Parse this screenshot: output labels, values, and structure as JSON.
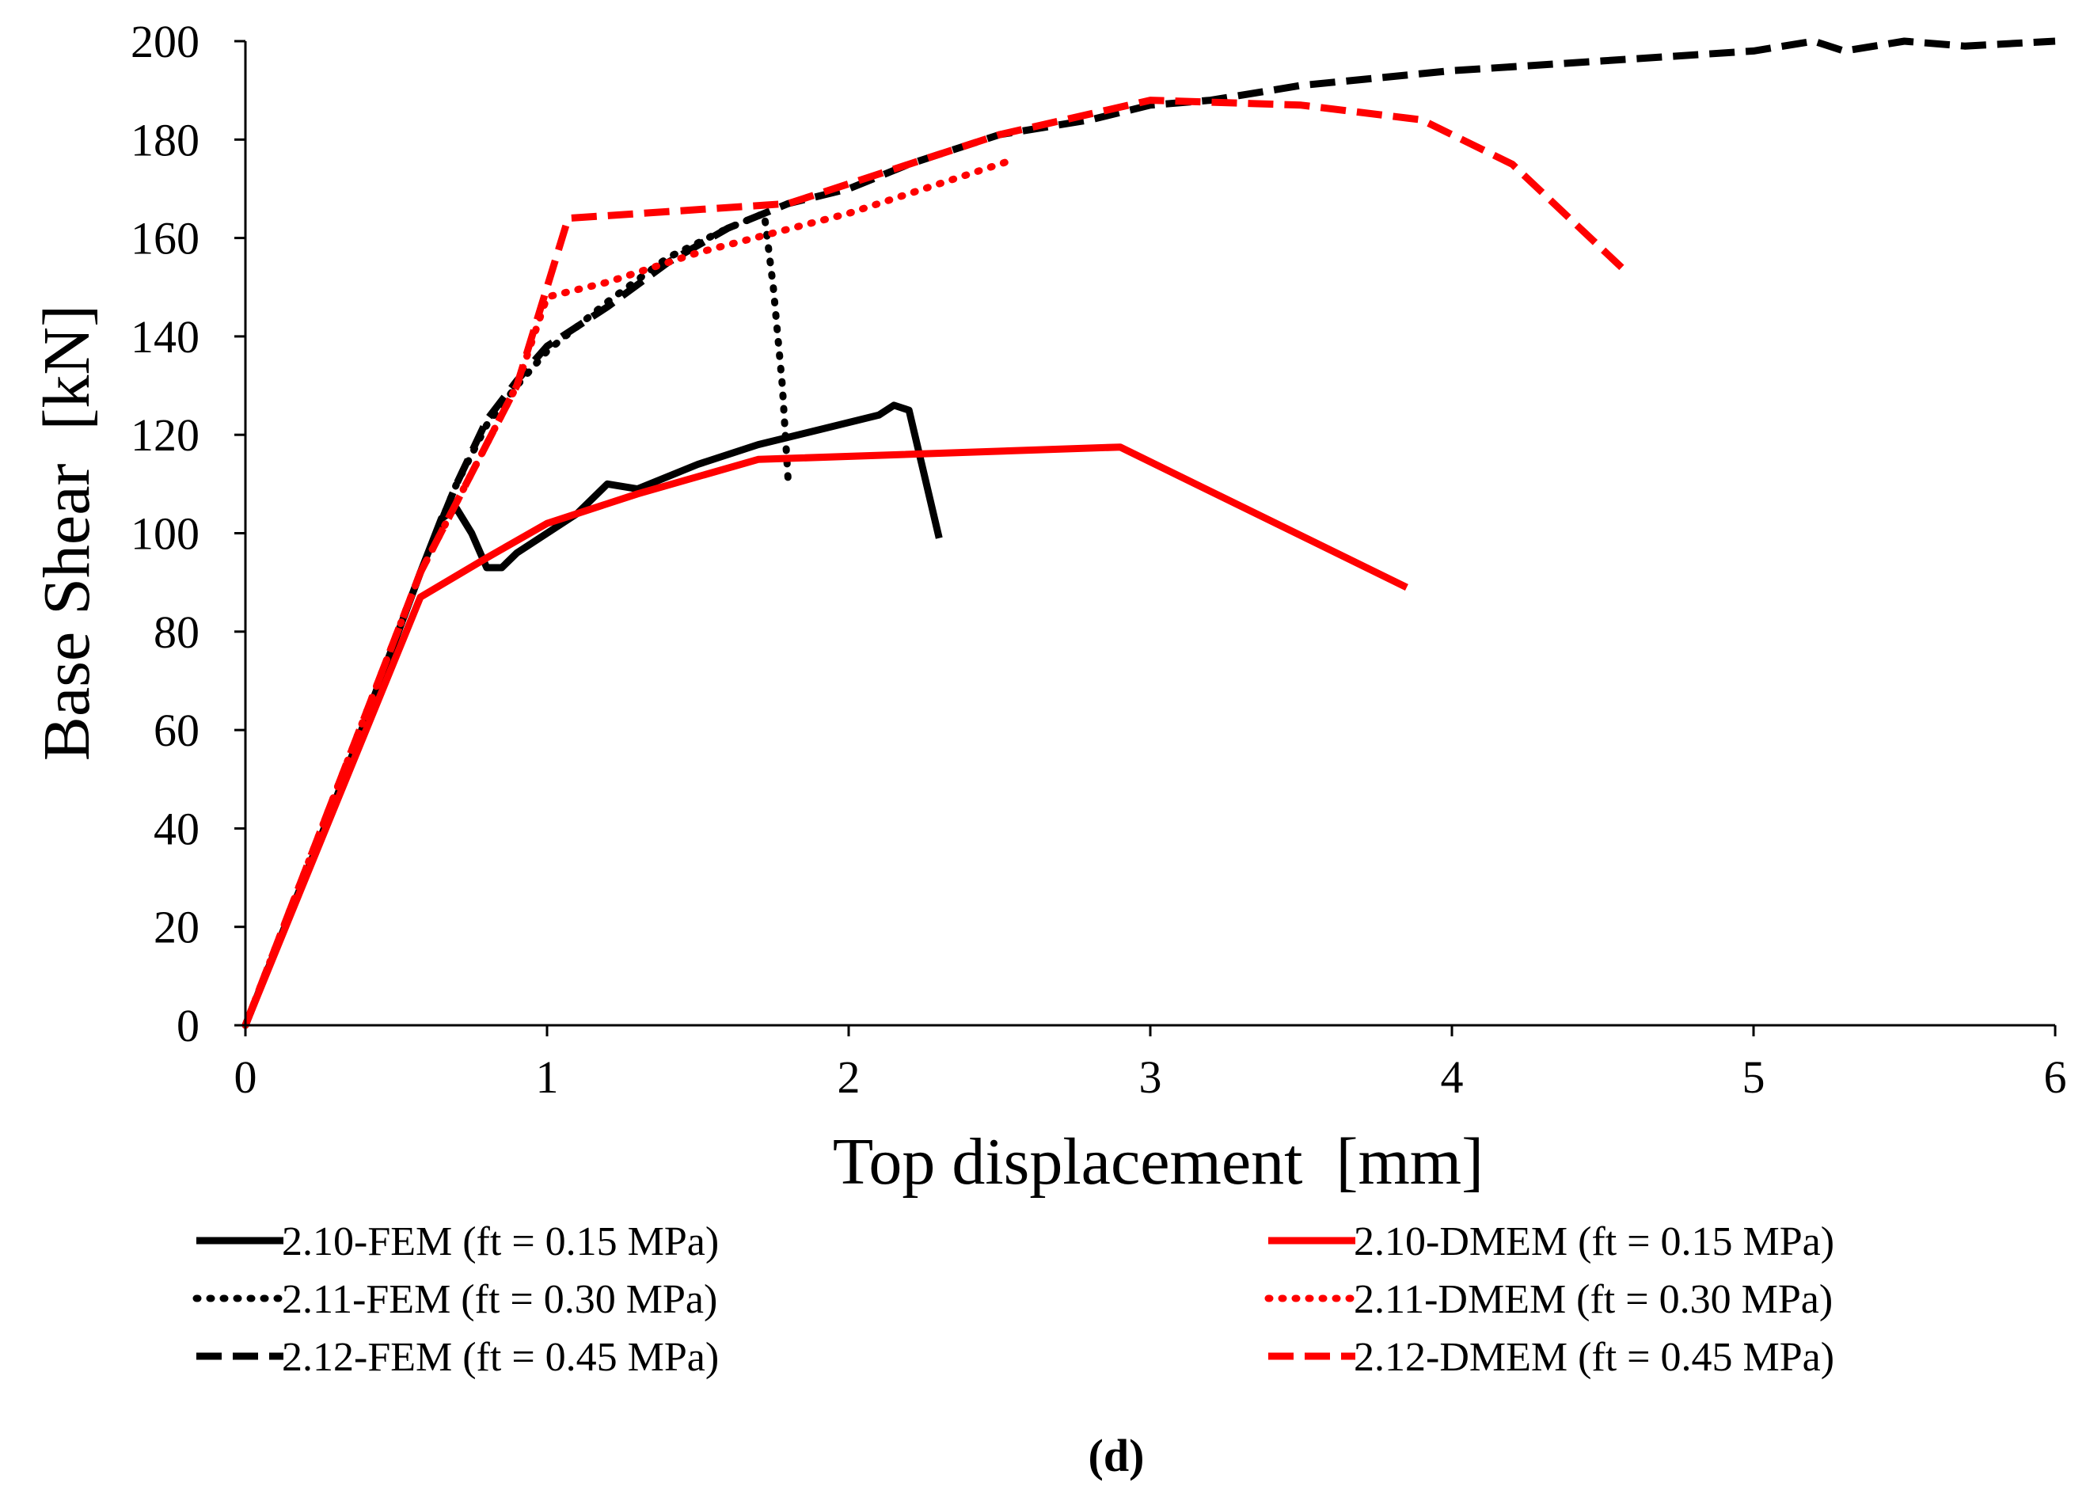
{
  "chart_data": {
    "type": "line",
    "title": "",
    "xlabel": "Top displacement  [mm]",
    "ylabel": "Base Shear  [kN]",
    "xlim": [
      0,
      6
    ],
    "ylim": [
      0,
      200
    ],
    "xticks": [
      0,
      1,
      2,
      3,
      4,
      5,
      6
    ],
    "yticks": [
      0,
      20,
      40,
      60,
      80,
      100,
      120,
      140,
      160,
      180,
      200
    ],
    "grid": false,
    "legend_position": "bottom",
    "caption": "(d)",
    "series": [
      {
        "name": "2.10-FEM (ft = 0.15 MPa)",
        "color": "#000000",
        "style": "solid",
        "points": [
          [
            0,
            0
          ],
          [
            0.3,
            46
          ],
          [
            0.58,
            92
          ],
          [
            0.65,
            103
          ],
          [
            0.7,
            105
          ],
          [
            0.75,
            100
          ],
          [
            0.8,
            93
          ],
          [
            0.85,
            93
          ],
          [
            0.9,
            96
          ],
          [
            1.0,
            100
          ],
          [
            1.1,
            104
          ],
          [
            1.2,
            110
          ],
          [
            1.3,
            109
          ],
          [
            1.5,
            114
          ],
          [
            1.7,
            118
          ],
          [
            1.9,
            121
          ],
          [
            2.1,
            124
          ],
          [
            2.15,
            126
          ],
          [
            2.2,
            125
          ],
          [
            2.25,
            112
          ],
          [
            2.3,
            99
          ]
        ]
      },
      {
        "name": "2.11-FEM (ft = 0.30 MPa)",
        "color": "#000000",
        "style": "dotted",
        "points": [
          [
            0,
            0
          ],
          [
            0.3,
            46
          ],
          [
            0.58,
            92
          ],
          [
            0.7,
            110
          ],
          [
            0.8,
            122
          ],
          [
            0.9,
            130
          ],
          [
            1.0,
            137
          ],
          [
            1.2,
            147
          ],
          [
            1.4,
            156
          ],
          [
            1.6,
            162
          ],
          [
            1.72,
            165
          ],
          [
            1.75,
            150
          ],
          [
            1.78,
            130
          ],
          [
            1.8,
            110
          ]
        ]
      },
      {
        "name": "2.12-FEM (ft = 0.45 MPa)",
        "color": "#000000",
        "style": "dashed",
        "points": [
          [
            0,
            0
          ],
          [
            0.3,
            46
          ],
          [
            0.58,
            92
          ],
          [
            0.7,
            110
          ],
          [
            0.8,
            123
          ],
          [
            0.9,
            131
          ],
          [
            1.0,
            138
          ],
          [
            1.2,
            146
          ],
          [
            1.4,
            155
          ],
          [
            1.6,
            162
          ],
          [
            1.8,
            167
          ],
          [
            2.0,
            170
          ],
          [
            2.2,
            175
          ],
          [
            2.5,
            181
          ],
          [
            2.8,
            184
          ],
          [
            3.0,
            187
          ],
          [
            3.2,
            188
          ],
          [
            3.5,
            191
          ],
          [
            4.0,
            194
          ],
          [
            4.5,
            196
          ],
          [
            5.0,
            198
          ],
          [
            5.2,
            200
          ],
          [
            5.3,
            198
          ],
          [
            5.5,
            200
          ],
          [
            5.7,
            199
          ],
          [
            6.0,
            200
          ]
        ]
      },
      {
        "name": "2.10-DMEM (ft = 0.15 MPa)",
        "color": "#ff0000",
        "style": "solid",
        "points": [
          [
            0,
            0
          ],
          [
            0.58,
            87
          ],
          [
            0.8,
            95
          ],
          [
            1.0,
            102
          ],
          [
            1.3,
            108
          ],
          [
            1.7,
            115
          ],
          [
            2.9,
            117.5
          ],
          [
            3.85,
            89
          ]
        ]
      },
      {
        "name": "2.11-DMEM (ft = 0.30 MPa)",
        "color": "#ff0000",
        "style": "dotted",
        "points": [
          [
            0,
            0
          ],
          [
            0.58,
            92
          ],
          [
            0.9,
            130
          ],
          [
            1.0,
            148
          ],
          [
            1.2,
            151
          ],
          [
            1.5,
            157
          ],
          [
            2.0,
            165
          ],
          [
            2.55,
            176
          ]
        ]
      },
      {
        "name": "2.12-DMEM (ft = 0.45 MPa)",
        "color": "#ff0000",
        "style": "dashed",
        "points": [
          [
            0,
            0
          ],
          [
            0.58,
            92
          ],
          [
            0.9,
            130
          ],
          [
            1.07,
            164
          ],
          [
            1.8,
            167
          ],
          [
            2.5,
            181
          ],
          [
            3.0,
            188
          ],
          [
            3.5,
            187
          ],
          [
            3.9,
            184
          ],
          [
            4.2,
            175
          ],
          [
            4.58,
            153
          ]
        ]
      }
    ]
  }
}
